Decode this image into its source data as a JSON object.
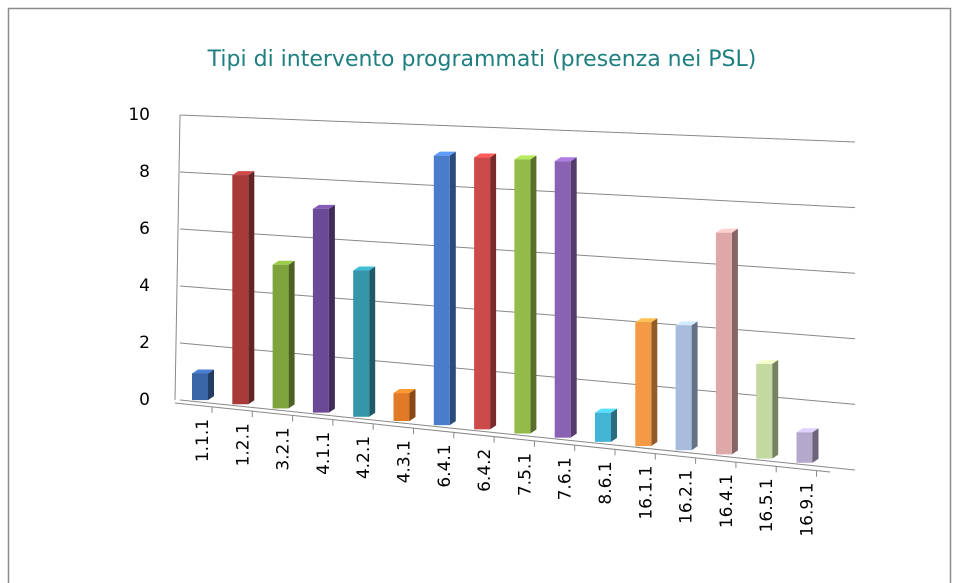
{
  "chart_data": {
    "type": "bar3d",
    "title": "Tipi di intervento programmati (presenza nei PSL)",
    "categories": [
      "1.1.1",
      "1.2.1",
      "3.2.1",
      "4.1.1",
      "4.2.1",
      "4.3.1",
      "6.4.1",
      "6.4.2",
      "7.5.1",
      "7.6.1",
      "8.6.1",
      "16.1.1",
      "16.2.1",
      "16.4.1",
      "16.5.1",
      "16.9.1"
    ],
    "values": [
      1,
      8,
      5,
      7,
      5,
      1,
      9,
      9,
      9,
      9,
      1,
      4,
      4,
      7,
      3,
      1
    ],
    "colors": [
      "#3a66a8",
      "#a83a3a",
      "#7ea33c",
      "#6a4a94",
      "#3596aa",
      "#e07a26",
      "#4a7ccc",
      "#cc4a4a",
      "#94bb4a",
      "#8a62b4",
      "#44b4d4",
      "#f49a44",
      "#a8bcde",
      "#dea8a8",
      "#c4d8a2",
      "#b4a8cc"
    ],
    "ylim": [
      0,
      10
    ],
    "yticks": [
      0,
      2,
      4,
      6,
      8,
      10
    ],
    "grid": true
  }
}
